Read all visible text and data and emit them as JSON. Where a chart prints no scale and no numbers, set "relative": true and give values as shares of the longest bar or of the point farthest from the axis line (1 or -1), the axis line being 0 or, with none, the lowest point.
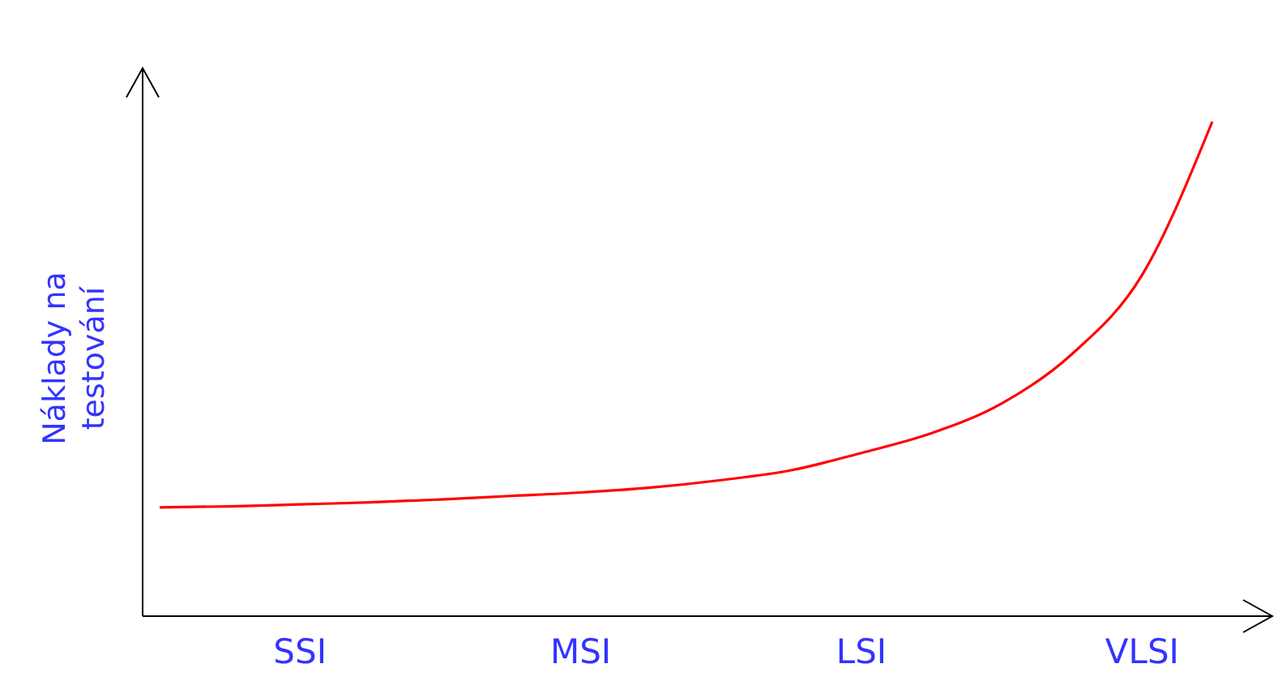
{
  "chart_data": {
    "type": "line",
    "relative": true,
    "ylabel": "Náklady na testování",
    "categories": [
      null,
      null,
      "SSI",
      null,
      null,
      null,
      "MSI",
      null,
      null,
      null,
      "LSI",
      null,
      null,
      null,
      "VLSI",
      null
    ],
    "series": [
      {
        "color": "#ff0000",
        "values": [
          0.22,
          0.222,
          0.226,
          0.23,
          0.236,
          0.243,
          0.25,
          0.26,
          0.275,
          0.295,
          0.33,
          0.37,
          0.43,
          0.53,
          0.69,
          1
        ]
      }
    ]
  }
}
